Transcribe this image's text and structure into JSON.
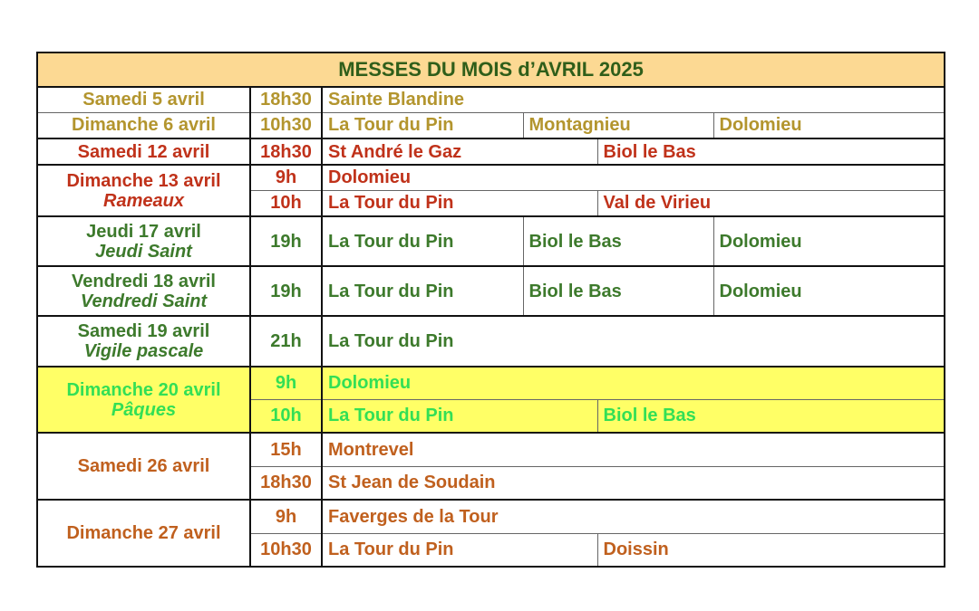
{
  "title": "MESSES DU MOIS d’AVRIL 2025",
  "colors": {
    "header_bg": "#fcd993",
    "title": "#2f5e1a",
    "early": "#b3952e",
    "palm": "#c0321a",
    "holy_week": "#3d7a2c",
    "easter": "#33df55",
    "easter_bg": "#ffff66",
    "late": "#c0601e"
  },
  "rows": [
    {
      "day": "Samedi 5 avril",
      "time": "18h30",
      "places": [
        "Sainte Blandine"
      ]
    },
    {
      "day": "Dimanche 6 avril",
      "time": "10h30",
      "places": [
        "La Tour du Pin",
        "Montagnieu",
        "Dolomieu"
      ]
    },
    {
      "day": "Samedi 12 avril",
      "time": "18h30",
      "places": [
        "St André le Gaz",
        "Biol le Bas"
      ]
    },
    {
      "day": "Dimanche 13 avril",
      "feast": "Rameaux",
      "masses": [
        {
          "time": "9h",
          "places": [
            "Dolomieu"
          ]
        },
        {
          "time": "10h",
          "places": [
            "La Tour du Pin",
            "Val de Virieu"
          ]
        }
      ]
    },
    {
      "day": "Jeudi 17 avril",
      "feast": "Jeudi Saint",
      "time": "19h",
      "places": [
        "La Tour du Pin",
        "Biol le Bas",
        "Dolomieu"
      ]
    },
    {
      "day": "Vendredi 18 avril",
      "feast": "Vendredi Saint",
      "time": "19h",
      "places": [
        "La Tour du Pin",
        "Biol le Bas",
        "Dolomieu"
      ]
    },
    {
      "day": "Samedi 19 avril",
      "feast": "Vigile pascale",
      "time": "21h",
      "places": [
        "La Tour du Pin"
      ]
    },
    {
      "day": "Dimanche 20 avril",
      "feast": "Pâques",
      "masses": [
        {
          "time": "9h",
          "places": [
            "Dolomieu"
          ]
        },
        {
          "time": "10h",
          "places": [
            "La Tour du Pin",
            "Biol le Bas"
          ]
        }
      ]
    },
    {
      "day": "Samedi 26 avril",
      "masses": [
        {
          "time": "15h",
          "places": [
            "Montrevel"
          ]
        },
        {
          "time": "18h30",
          "places": [
            "St Jean de Soudain"
          ]
        }
      ]
    },
    {
      "day": "Dimanche 27 avril",
      "masses": [
        {
          "time": "9h",
          "places": [
            "Faverges de la Tour"
          ]
        },
        {
          "time": "10h30",
          "places": [
            "La Tour du Pin",
            "Doissin"
          ]
        }
      ]
    }
  ]
}
